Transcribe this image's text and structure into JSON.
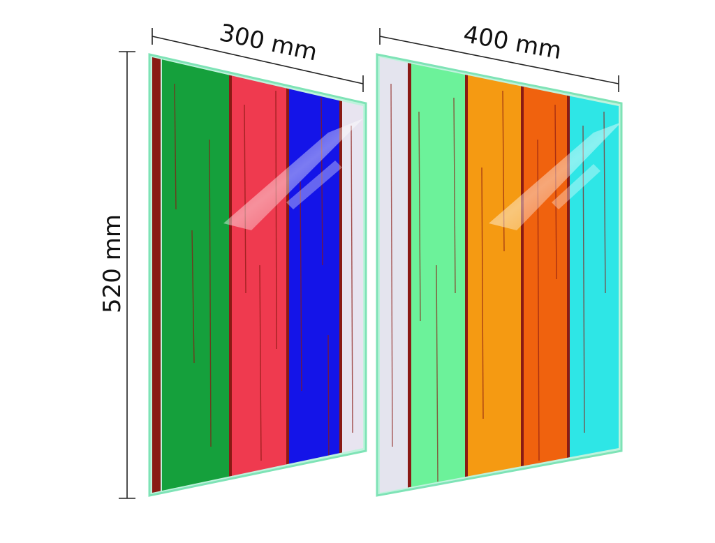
{
  "dimensions": {
    "width_left": "300 mm",
    "width_right": "400 mm",
    "height": "520 mm"
  },
  "panels": [
    {
      "name": "left",
      "planks": [
        "#15a03c",
        "#ef3a4f",
        "#1414e8",
        "#e8e4f0"
      ],
      "wood_color": "#8a1a14",
      "edge_color": "#7ee3b6"
    },
    {
      "name": "right",
      "planks": [
        "#e4e4ee",
        "#6cf29a",
        "#f59a12",
        "#f0620e",
        "#2ee6e6"
      ],
      "wood_color": "#8a1a14",
      "edge_color": "#7ee3b6"
    }
  ]
}
